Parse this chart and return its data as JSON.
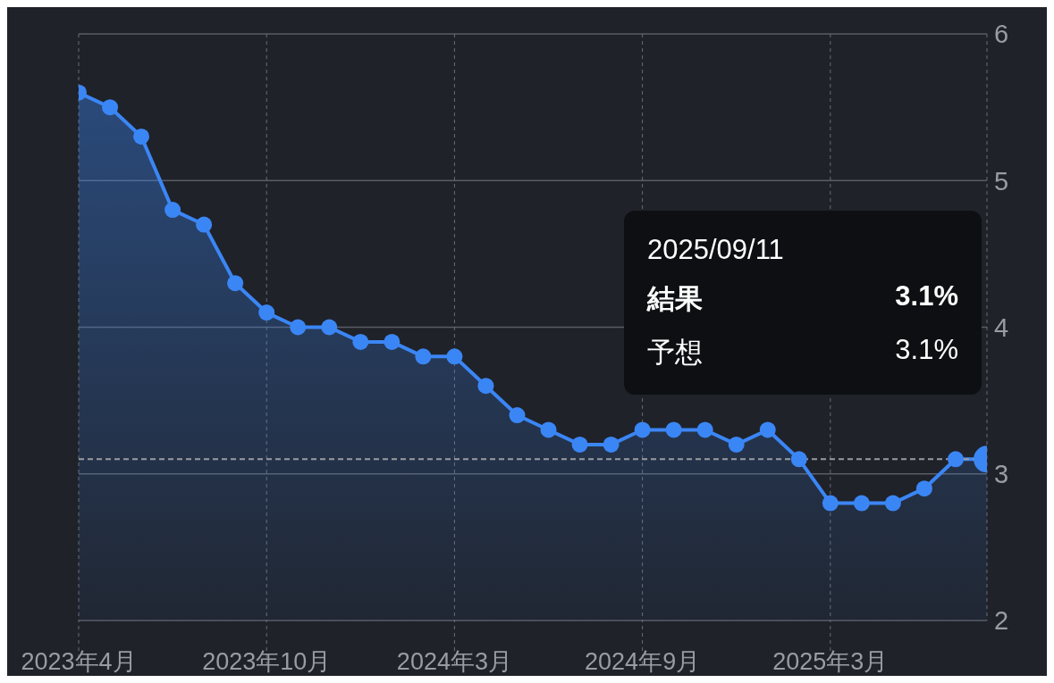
{
  "chart_data": {
    "type": "area",
    "categories": [
      "2023年4月",
      null,
      null,
      null,
      null,
      null,
      "2023年10月",
      null,
      null,
      null,
      null,
      null,
      "2024年3月",
      null,
      null,
      null,
      null,
      null,
      "2024年9月",
      null,
      null,
      null,
      null,
      null,
      "2025年3月",
      null,
      null,
      null,
      null,
      null
    ],
    "series": [
      {
        "color": "#3b86f5",
        "values": [
          5.6,
          5.5,
          5.3,
          4.8,
          4.7,
          4.3,
          4.1,
          4.0,
          4.0,
          3.9,
          3.9,
          3.8,
          3.8,
          3.6,
          3.4,
          3.3,
          3.2,
          3.2,
          3.3,
          3.3,
          3.3,
          3.2,
          3.3,
          3.1,
          2.8,
          2.8,
          2.8,
          2.9,
          3.1,
          3.1
        ]
      }
    ],
    "ylim": [
      2,
      6
    ],
    "yticks": [
      2,
      3,
      4,
      5,
      6
    ],
    "grid": true,
    "legend": false,
    "marker": "circle",
    "line_style": "solid",
    "ref_lines": [
      {
        "axis": "y",
        "value": 3.1,
        "color": "#9a9ca3",
        "line_style": "dashed"
      }
    ],
    "annotations": [
      "2025/09/11",
      "結果",
      "3.1%",
      "予想",
      "3.1%"
    ]
  }
}
